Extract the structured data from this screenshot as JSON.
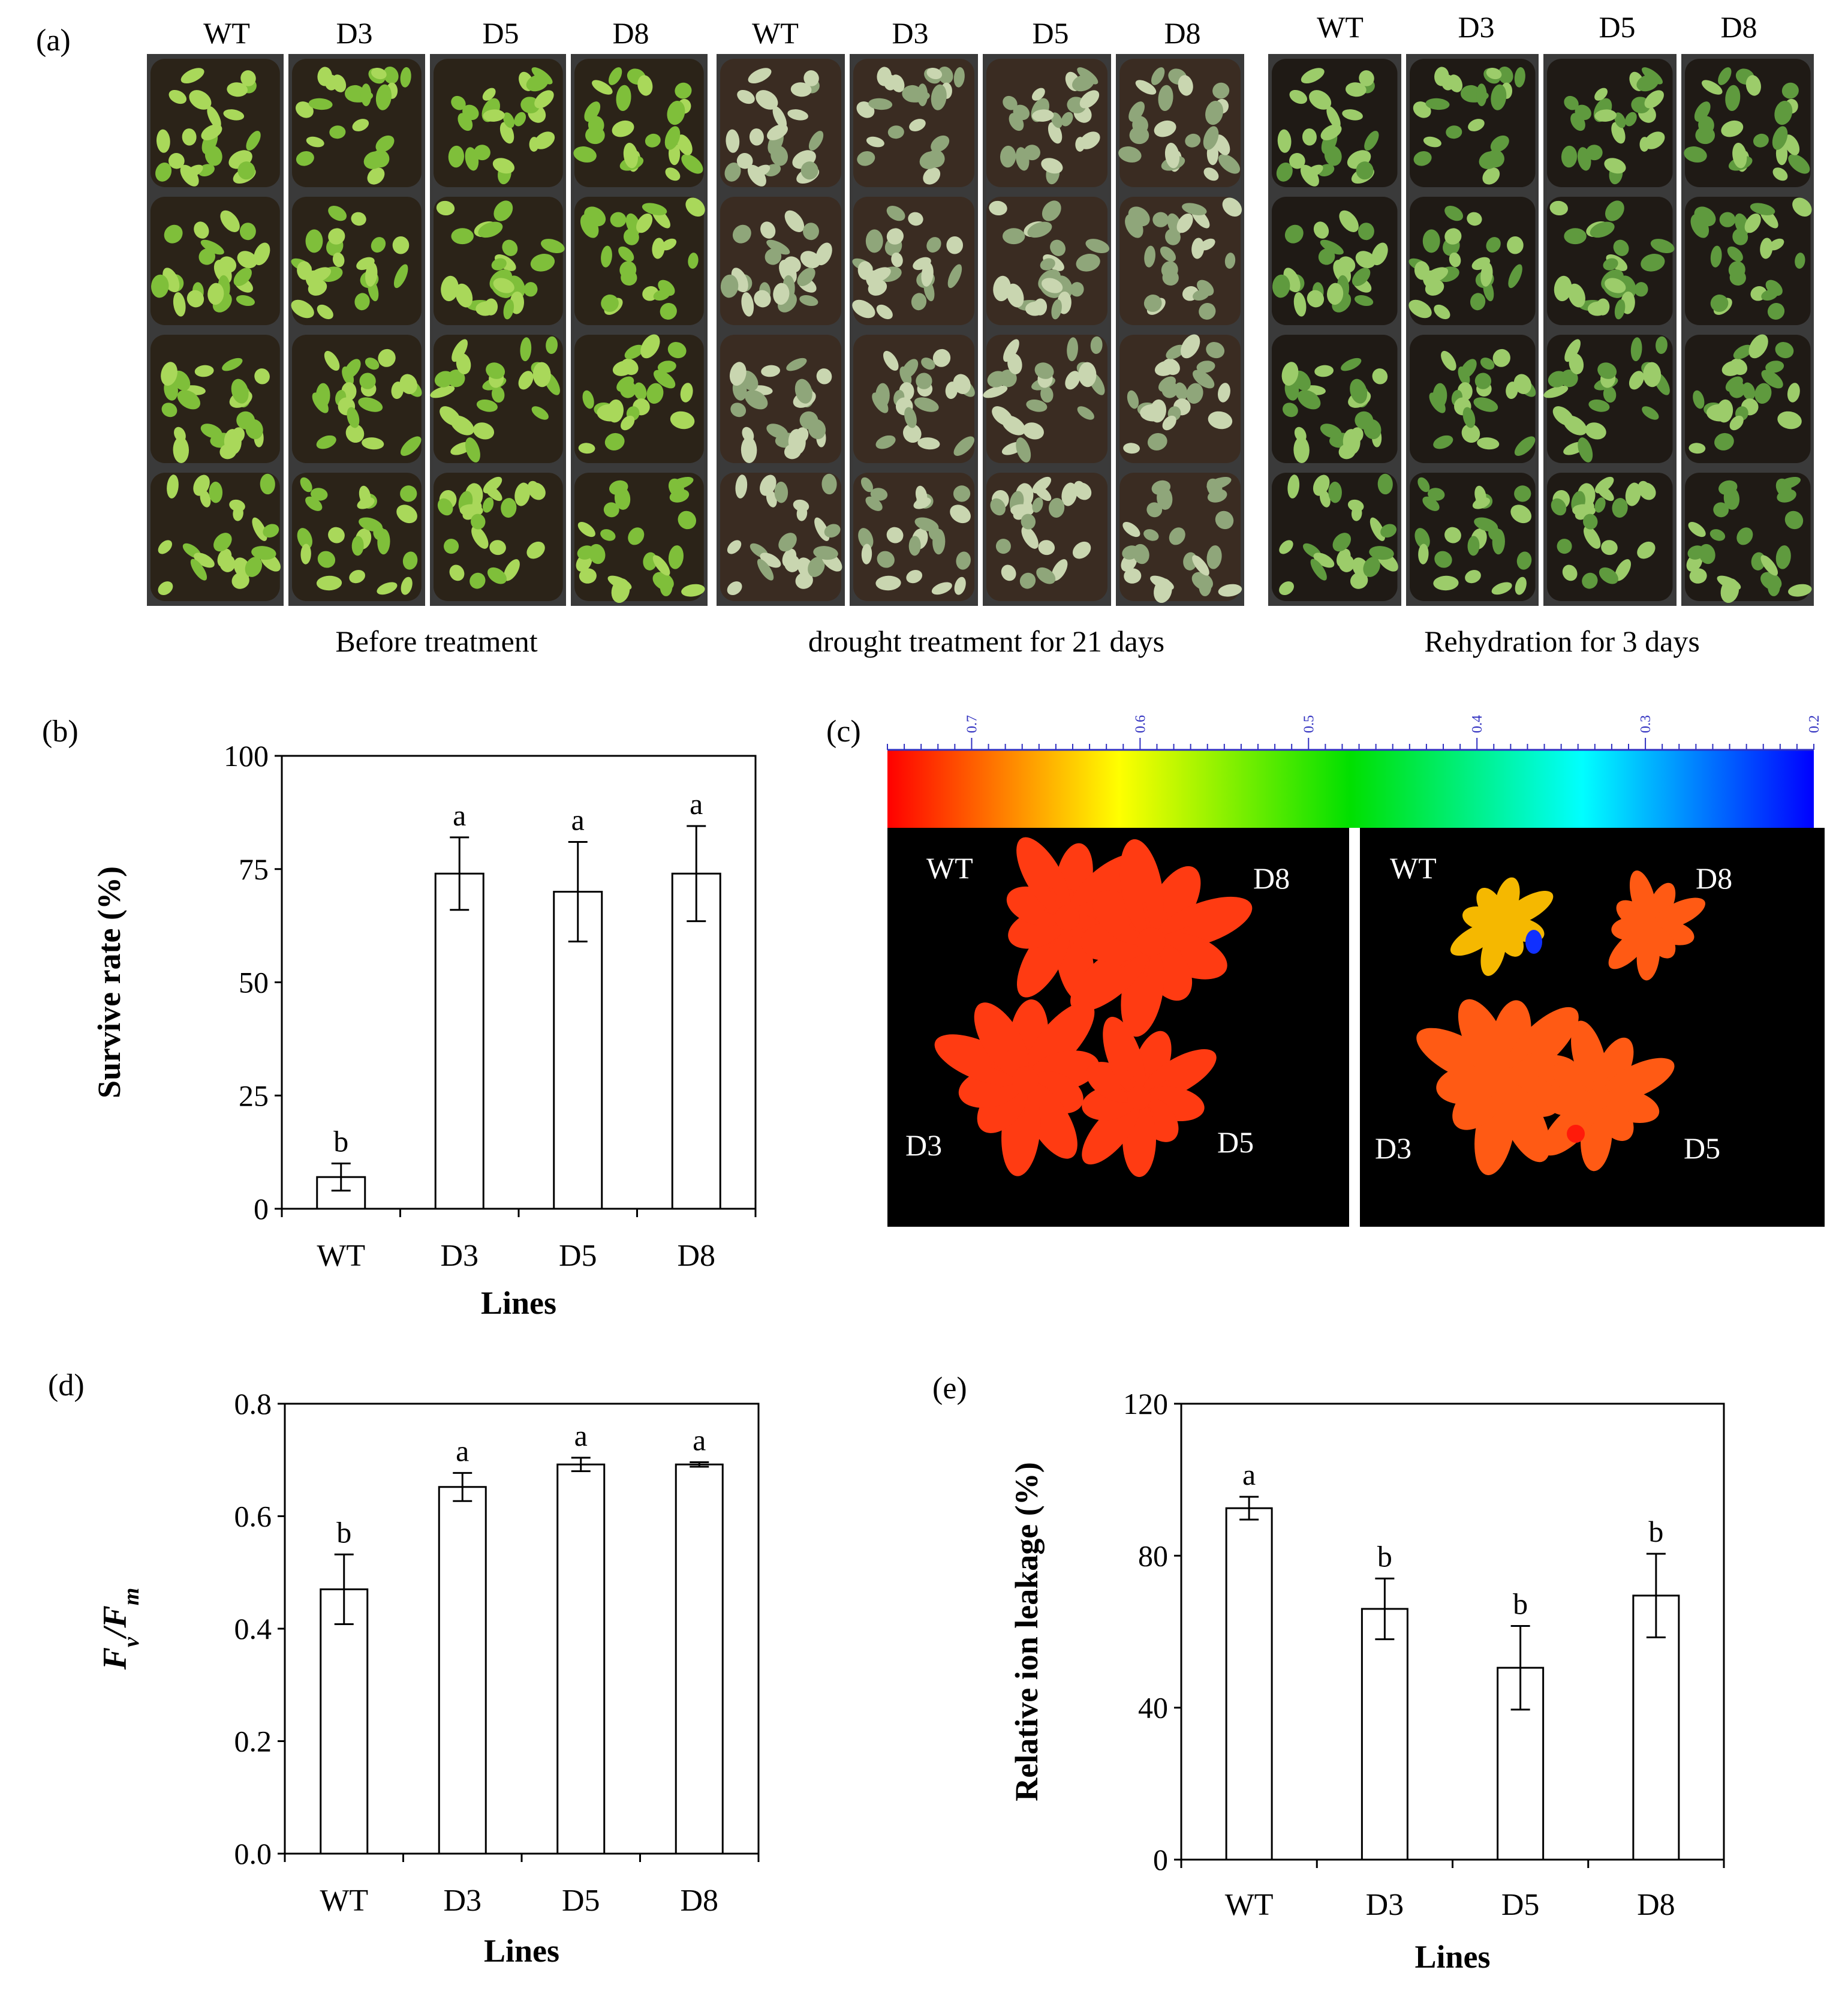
{
  "panel_labels": {
    "a": "(a)",
    "b": "(b)",
    "c": "(c)",
    "d": "(d)",
    "e": "(e)"
  },
  "panel_a": {
    "groups": [
      {
        "caption": "Before treatment",
        "lines": [
          "WT",
          "D3",
          "D5",
          "D8"
        ],
        "colors": {
          "soil": "#2b2318",
          "leaf": "#7fbf3a",
          "leaf_light": "#a9d85a"
        }
      },
      {
        "caption": "drought treatment for 21 days",
        "lines": [
          "WT",
          "D3",
          "D5",
          "D8"
        ],
        "colors": {
          "soil": "#3a2c22",
          "leaf": "#8fa67a",
          "leaf_light": "#c9d6b0"
        }
      },
      {
        "caption": "Rehydration for 3 days",
        "lines": [
          "WT",
          "D3",
          "D5",
          "D8"
        ],
        "colors": {
          "soil": "#1f1a15",
          "leaf": "#5f9a3e",
          "leaf_light": "#9ccc6a"
        }
      }
    ]
  },
  "panel_c": {
    "colorbar_ticks": [
      "0.7",
      "0.6",
      "0.5",
      "0.4",
      "0.3",
      "0.2"
    ],
    "images": [
      {
        "labels": {
          "tl": "WT",
          "tr": "D8",
          "bl": "D3",
          "br": "D5"
        }
      },
      {
        "labels": {
          "tl": "WT",
          "tr": "D8",
          "bl": "D3",
          "br": "D5"
        }
      }
    ],
    "colors": {
      "control": "#ff3b12",
      "wt_stressed": "#f5b800",
      "transgenic_stressed": "#ff5a14",
      "background": "#000000"
    }
  },
  "chart_data": [
    {
      "id": "b",
      "type": "bar",
      "categories": [
        "WT",
        "D3",
        "D5",
        "D8"
      ],
      "values": [
        7,
        74,
        70,
        74
      ],
      "errors": [
        3,
        8,
        11,
        10.5
      ],
      "letters": [
        "b",
        "a",
        "a",
        "a"
      ],
      "xlabel": "Lines",
      "ylabel": "Survive rate  (%)",
      "ylim": [
        0,
        100
      ],
      "yticks": [
        "0",
        "25",
        "50",
        "75",
        "100"
      ]
    },
    {
      "id": "d",
      "type": "bar",
      "categories": [
        "WT",
        "D3",
        "D5",
        "D8"
      ],
      "values": [
        0.47,
        0.652,
        0.692,
        0.692
      ],
      "errors": [
        0.062,
        0.025,
        0.012,
        0.004
      ],
      "letters": [
        "b",
        "a",
        "a",
        "a"
      ],
      "xlabel": "Lines",
      "ylabel": "Fv/Fm",
      "ylim": [
        0,
        0.8
      ],
      "yticks": [
        "0.0",
        "0.2",
        "0.4",
        "0.6",
        "0.8"
      ]
    },
    {
      "id": "e",
      "type": "bar",
      "categories": [
        "WT",
        "D3",
        "D5",
        "D8"
      ],
      "values": [
        92.5,
        66,
        50.5,
        69.5
      ],
      "errors": [
        3,
        8,
        11,
        11
      ],
      "letters": [
        "a",
        "b",
        "b",
        "b"
      ],
      "xlabel": "Lines",
      "ylabel": "Relative ion leakage (%)",
      "ylim": [
        0,
        120
      ],
      "yticks": [
        "0",
        "40",
        "80",
        "120"
      ]
    }
  ]
}
